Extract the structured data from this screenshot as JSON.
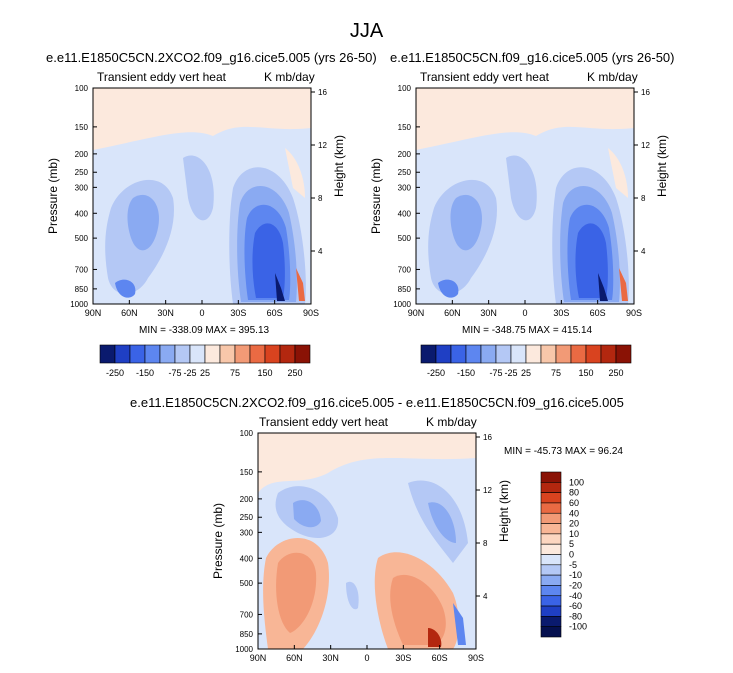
{
  "page": {
    "title": "JJA"
  },
  "chart_data": [
    {
      "type": "heatmap",
      "title": "e.e11.E1850C5CN.2XCO2.f09_g16.cice5.005 (yrs 26-50)",
      "left_string": "Transient eddy vert heat",
      "right_string": "K mb/day",
      "xlabel": "",
      "ylabel": "Pressure (mb)",
      "y2label": "Height (km)",
      "x_ticks": [
        "90N",
        "60N",
        "30N",
        "0",
        "30S",
        "60S",
        "90S"
      ],
      "y_ticks": [
        "100",
        "150",
        "200",
        "250",
        "300",
        "400",
        "500",
        "700",
        "850",
        "1000"
      ],
      "y2_ticks": [
        "16",
        "12",
        "8",
        "4"
      ],
      "min_max_text": "MIN = -338.09  MAX = 395.13",
      "levels": [
        "-250",
        "-150",
        "-75",
        "-25",
        "25",
        "75",
        "150",
        "250"
      ],
      "colorbar_orientation": "horizontal"
    },
    {
      "type": "heatmap",
      "title": "e.e11.E1850C5CN.f09_g16.cice5.005 (yrs 26-50)",
      "left_string": "Transient eddy vert heat",
      "right_string": "K mb/day",
      "xlabel": "",
      "ylabel": "Pressure (mb)",
      "y2label": "Height (km)",
      "x_ticks": [
        "90N",
        "60N",
        "30N",
        "0",
        "30S",
        "60S",
        "90S"
      ],
      "y_ticks": [
        "100",
        "150",
        "200",
        "250",
        "300",
        "400",
        "500",
        "700",
        "850",
        "1000"
      ],
      "y2_ticks": [
        "16",
        "12",
        "8",
        "4"
      ],
      "min_max_text": "MIN = -348.75  MAX = 415.14",
      "levels": [
        "-250",
        "-150",
        "-75",
        "-25",
        "25",
        "75",
        "150",
        "250"
      ],
      "colorbar_orientation": "horizontal"
    },
    {
      "type": "heatmap",
      "title": "e.e11.E1850C5CN.2XCO2.f09_g16.cice5.005 - e.e11.E1850C5CN.f09_g16.cice5.005",
      "left_string": "Transient eddy vert heat",
      "right_string": "K mb/day",
      "xlabel": "",
      "ylabel": "Pressure (mb)",
      "y2label": "Height (km)",
      "x_ticks": [
        "90N",
        "60N",
        "30N",
        "0",
        "30S",
        "60S",
        "90S"
      ],
      "y_ticks": [
        "100",
        "150",
        "200",
        "250",
        "300",
        "400",
        "500",
        "700",
        "850",
        "1000"
      ],
      "y2_ticks": [
        "16",
        "12",
        "8",
        "4"
      ],
      "min_max_text": "MIN = -45.73  MAX =  96.24",
      "levels": [
        "100",
        "80",
        "60",
        "40",
        "20",
        "10",
        "5",
        "0",
        "-5",
        "-10",
        "-20",
        "-40",
        "-60",
        "-80",
        "-100"
      ],
      "colorbar_orientation": "vertical"
    }
  ],
  "colors": {
    "abs_scale": [
      "#0a1a6e",
      "#1f3fc4",
      "#3a63e6",
      "#5d86f0",
      "#8aaaf2",
      "#b4c8f5",
      "#d9e5fa",
      "#fce9dd",
      "#f8c7aa",
      "#f29a76",
      "#ea6a43",
      "#d9431f",
      "#b3270f",
      "#8a1205"
    ],
    "diff_scale": [
      "#8a1205",
      "#b3270f",
      "#d9431f",
      "#ea6a43",
      "#f29a76",
      "#f8b696",
      "#fcd6c0",
      "#fce9dd",
      "#d9e5fa",
      "#b4c8f5",
      "#8aaaf2",
      "#5d86f0",
      "#3a63e6",
      "#1f3fc4",
      "#0a1a6e",
      "#05104f"
    ]
  }
}
